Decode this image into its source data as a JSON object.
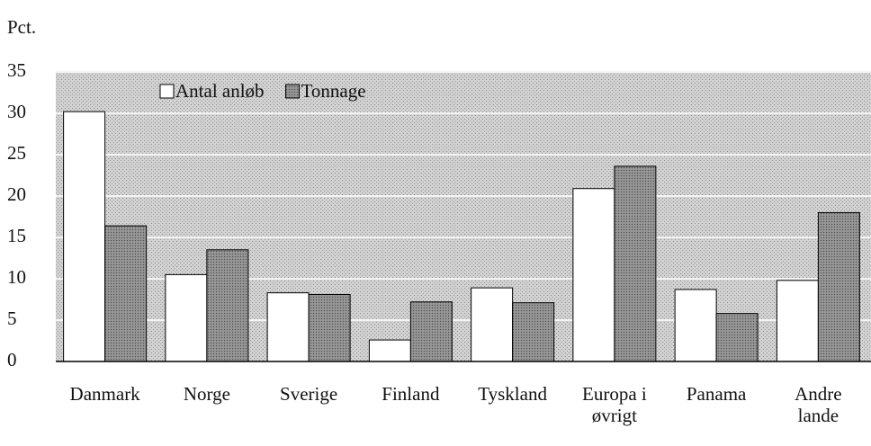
{
  "chart_data": {
    "type": "bar",
    "y_label": "Pct.",
    "categories": [
      "Danmark",
      "Norge",
      "Sverige",
      "Finland",
      "Tyskland",
      "Europa i øvrigt",
      "Panama",
      "Andre lande"
    ],
    "series": [
      {
        "name": "Antal anløb",
        "color": "#ffffff",
        "values": [
          30.2,
          10.5,
          8.3,
          2.6,
          8.9,
          20.9,
          8.7,
          9.8
        ]
      },
      {
        "name": "Tonnage",
        "color": "#8c8c8c",
        "values": [
          16.4,
          13.5,
          8.1,
          7.2,
          7.1,
          23.6,
          5.8,
          18.0
        ]
      }
    ],
    "ylim": [
      0,
      35
    ],
    "yticks": [
      0,
      5,
      10,
      15,
      20,
      25,
      30,
      35
    ],
    "grid": true,
    "legend": "top-left"
  }
}
